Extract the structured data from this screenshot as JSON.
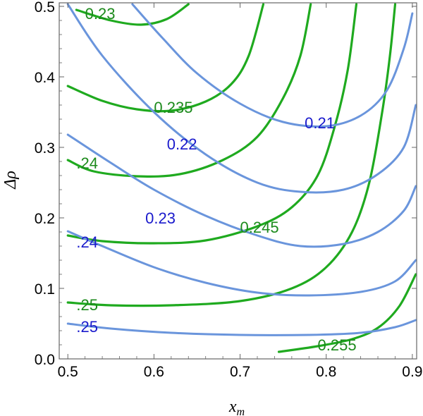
{
  "chart_data": {
    "type": "contour",
    "xlabel": "x_m",
    "ylabel": "Δρ",
    "xlim": [
      0.49,
      0.905
    ],
    "ylim": [
      0.0,
      0.505
    ],
    "x_ticks": [
      "0.5",
      "0.6",
      "0.7",
      "0.8",
      "0.9"
    ],
    "y_ticks": [
      "0.0",
      "0.1",
      "0.2",
      "0.3",
      "0.4",
      "0.5"
    ],
    "x_tick_values": [
      0.5,
      0.6,
      0.7,
      0.8,
      0.9
    ],
    "y_tick_values": [
      0.0,
      0.1,
      0.2,
      0.3,
      0.4,
      0.5
    ],
    "grid": false,
    "colors": {
      "green": "#1faa1f",
      "blue": "#6a95dc",
      "green_text": "#1c8a1c",
      "blue_text": "#1a1acc"
    },
    "series": [
      {
        "group": "green",
        "label": "0.23",
        "points": [
          [
            0.51,
            0.495
          ],
          [
            0.55,
            0.48
          ],
          [
            0.585,
            0.474
          ],
          [
            0.615,
            0.482
          ],
          [
            0.64,
            0.503
          ]
        ]
      },
      {
        "group": "green",
        "label": "0.235",
        "points": [
          [
            0.5,
            0.387
          ],
          [
            0.54,
            0.366
          ],
          [
            0.58,
            0.354
          ],
          [
            0.62,
            0.352
          ],
          [
            0.66,
            0.365
          ],
          [
            0.69,
            0.39
          ],
          [
            0.71,
            0.43
          ],
          [
            0.727,
            0.503
          ]
        ]
      },
      {
        "group": "green",
        "label": "0.24",
        "points": [
          [
            0.5,
            0.282
          ],
          [
            0.53,
            0.266
          ],
          [
            0.58,
            0.259
          ],
          [
            0.63,
            0.262
          ],
          [
            0.68,
            0.282
          ],
          [
            0.72,
            0.315
          ],
          [
            0.75,
            0.37
          ],
          [
            0.77,
            0.43
          ],
          [
            0.782,
            0.503
          ]
        ]
      },
      {
        "group": "green",
        "label": "0.245",
        "points": [
          [
            0.5,
            0.175
          ],
          [
            0.54,
            0.167
          ],
          [
            0.6,
            0.164
          ],
          [
            0.66,
            0.168
          ],
          [
            0.72,
            0.188
          ],
          [
            0.76,
            0.215
          ],
          [
            0.79,
            0.26
          ],
          [
            0.81,
            0.33
          ],
          [
            0.825,
            0.41
          ],
          [
            0.835,
            0.503
          ]
        ]
      },
      {
        "group": "green",
        "label": "0.25",
        "points": [
          [
            0.5,
            0.08
          ],
          [
            0.55,
            0.076
          ],
          [
            0.62,
            0.076
          ],
          [
            0.7,
            0.082
          ],
          [
            0.76,
            0.1
          ],
          [
            0.8,
            0.13
          ],
          [
            0.83,
            0.18
          ],
          [
            0.85,
            0.25
          ],
          [
            0.865,
            0.35
          ],
          [
            0.874,
            0.43
          ],
          [
            0.88,
            0.503
          ]
        ]
      },
      {
        "group": "green",
        "label": "0.255",
        "points": [
          [
            0.745,
            0.01
          ],
          [
            0.79,
            0.018
          ],
          [
            0.83,
            0.028
          ],
          [
            0.86,
            0.044
          ],
          [
            0.885,
            0.075
          ],
          [
            0.904,
            0.12
          ]
        ]
      },
      {
        "group": "blue",
        "label": "0.21",
        "points": [
          [
            0.575,
            0.503
          ],
          [
            0.61,
            0.455
          ],
          [
            0.65,
            0.405
          ],
          [
            0.7,
            0.362
          ],
          [
            0.75,
            0.336
          ],
          [
            0.8,
            0.33
          ],
          [
            0.84,
            0.345
          ],
          [
            0.87,
            0.38
          ],
          [
            0.89,
            0.44
          ],
          [
            0.9,
            0.49
          ]
        ]
      },
      {
        "group": "blue",
        "label": "0.22",
        "points": [
          [
            0.5,
            0.503
          ],
          [
            0.54,
            0.43
          ],
          [
            0.6,
            0.35
          ],
          [
            0.66,
            0.29
          ],
          [
            0.72,
            0.25
          ],
          [
            0.77,
            0.237
          ],
          [
            0.82,
            0.24
          ],
          [
            0.86,
            0.262
          ],
          [
            0.89,
            0.3
          ],
          [
            0.904,
            0.36
          ]
        ]
      },
      {
        "group": "blue",
        "label": "0.23",
        "points": [
          [
            0.5,
            0.318
          ],
          [
            0.55,
            0.278
          ],
          [
            0.6,
            0.24
          ],
          [
            0.66,
            0.203
          ],
          [
            0.72,
            0.175
          ],
          [
            0.77,
            0.16
          ],
          [
            0.82,
            0.163
          ],
          [
            0.86,
            0.18
          ],
          [
            0.89,
            0.21
          ],
          [
            0.904,
            0.245
          ]
        ]
      },
      {
        "group": "blue",
        "label": "0.24",
        "points": [
          [
            0.5,
            0.181
          ],
          [
            0.54,
            0.16
          ],
          [
            0.6,
            0.13
          ],
          [
            0.66,
            0.108
          ],
          [
            0.72,
            0.094
          ],
          [
            0.78,
            0.09
          ],
          [
            0.84,
            0.095
          ],
          [
            0.88,
            0.11
          ],
          [
            0.904,
            0.14
          ]
        ]
      },
      {
        "group": "blue",
        "label": "0.25",
        "points": [
          [
            0.5,
            0.05
          ],
          [
            0.55,
            0.043
          ],
          [
            0.62,
            0.037
          ],
          [
            0.7,
            0.034
          ],
          [
            0.78,
            0.034
          ],
          [
            0.84,
            0.037
          ],
          [
            0.88,
            0.045
          ],
          [
            0.904,
            0.055
          ]
        ]
      }
    ],
    "labels": [
      {
        "text": "0.23",
        "group": "green",
        "at": [
          0.52,
          0.49
        ]
      },
      {
        "text": "0.235",
        "group": "green",
        "at": [
          0.6,
          0.357
        ]
      },
      {
        "text": ".24",
        "group": "green",
        "at": [
          0.51,
          0.278
        ]
      },
      {
        "text": "0.245",
        "group": "green",
        "at": [
          0.7,
          0.187
        ]
      },
      {
        "text": ".25",
        "group": "green",
        "at": [
          0.51,
          0.077
        ]
      },
      {
        "text": "0.255",
        "group": "green",
        "at": [
          0.79,
          0.02
        ]
      },
      {
        "text": "0.21",
        "group": "blue",
        "at": [
          0.775,
          0.335
        ]
      },
      {
        "text": "0.22",
        "group": "blue",
        "at": [
          0.615,
          0.305
        ]
      },
      {
        "text": "0.23",
        "group": "blue",
        "at": [
          0.59,
          0.2
        ]
      },
      {
        "text": ".24",
        "group": "blue",
        "at": [
          0.51,
          0.166
        ]
      },
      {
        "text": ".25",
        "group": "blue",
        "at": [
          0.51,
          0.046
        ]
      }
    ]
  }
}
